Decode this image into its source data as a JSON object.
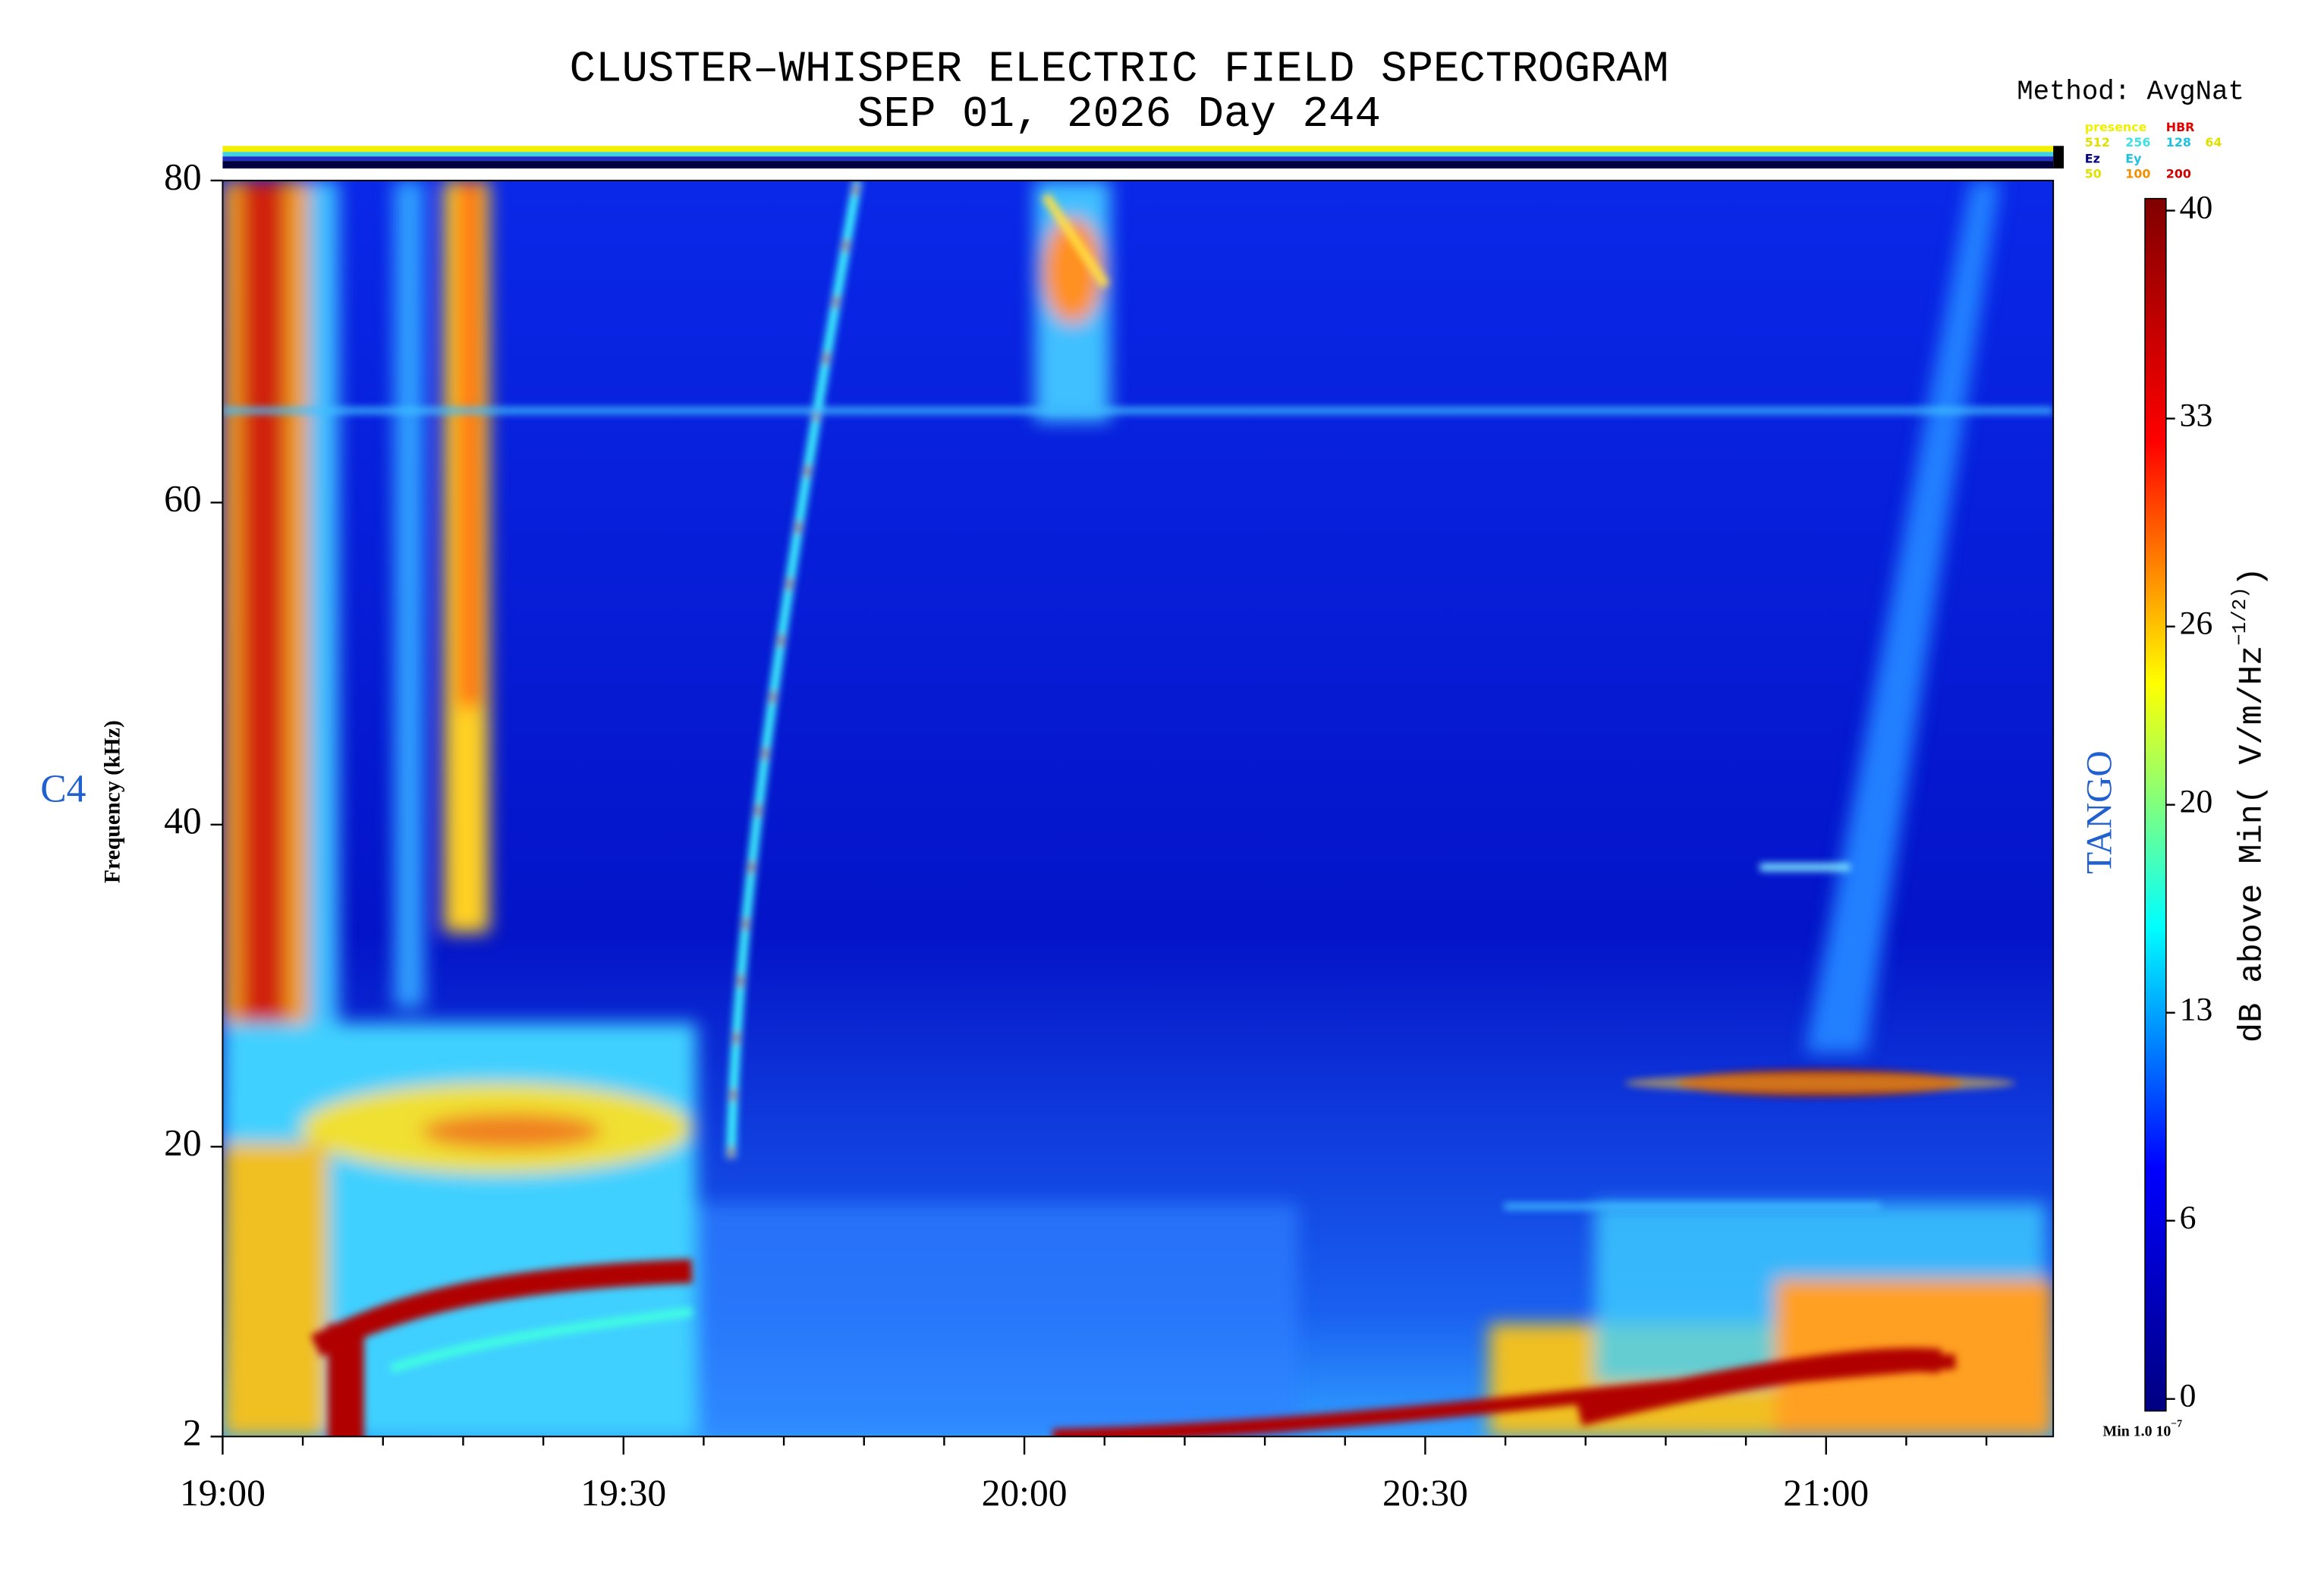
{
  "chart_data": {
    "type": "spectrogram",
    "title": "CLUSTER–WHISPER ELECTRIC FIELD SPECTROGRAM",
    "subtitle": "SEP 01, 2026 Day 244",
    "method": "Method: AvgNat",
    "ylabel": "Frequency (kHz)",
    "spacecraft": "C4",
    "mode": "TANGO",
    "colormap": "jet",
    "xlim": [
      1140,
      1277
    ],
    "xticks": [
      {
        "value": 1140,
        "label": "19:00"
      },
      {
        "value": 1170,
        "label": "19:30"
      },
      {
        "value": 1200,
        "label": "20:00"
      },
      {
        "value": 1230,
        "label": "20:30"
      },
      {
        "value": 1260,
        "label": "21:00"
      }
    ],
    "xminorticks": [
      1146,
      1152,
      1158,
      1164,
      1176,
      1182,
      1188,
      1194,
      1206,
      1212,
      1218,
      1224,
      1236,
      1242,
      1248,
      1254,
      1266,
      1272
    ],
    "ylim": [
      2,
      80
    ],
    "yticks": [
      2,
      20,
      40,
      60,
      80
    ],
    "colorbar": {
      "label": "dB above Min( V/m/Hz",
      "label_sup": "−1/2)",
      "label_end": ")",
      "lim": [
        0,
        40
      ],
      "ticks": [
        0,
        6,
        13,
        20,
        26,
        33,
        40
      ],
      "min_label": "Min 1.0 10",
      "min_sup": "−7"
    },
    "status_legend": [
      {
        "text": "presence",
        "color": "#f0f000"
      },
      {
        "text": "HBR",
        "color": "#e00000"
      },
      {
        "text": "512",
        "color": "#e0e000"
      },
      {
        "text": "256",
        "color": "#40e0e0"
      },
      {
        "text": "128",
        "color": "#20c0e0"
      },
      {
        "text": "64",
        "color": "#e0e000"
      },
      {
        "text": "Ez",
        "color": "#000080"
      },
      {
        "text": "Ey",
        "color": "#20c0e0"
      },
      {
        "text": "50",
        "color": "#e0e000"
      },
      {
        "text": "100",
        "color": "#f09000"
      },
      {
        "text": "200",
        "color": "#d00000"
      }
    ]
  }
}
